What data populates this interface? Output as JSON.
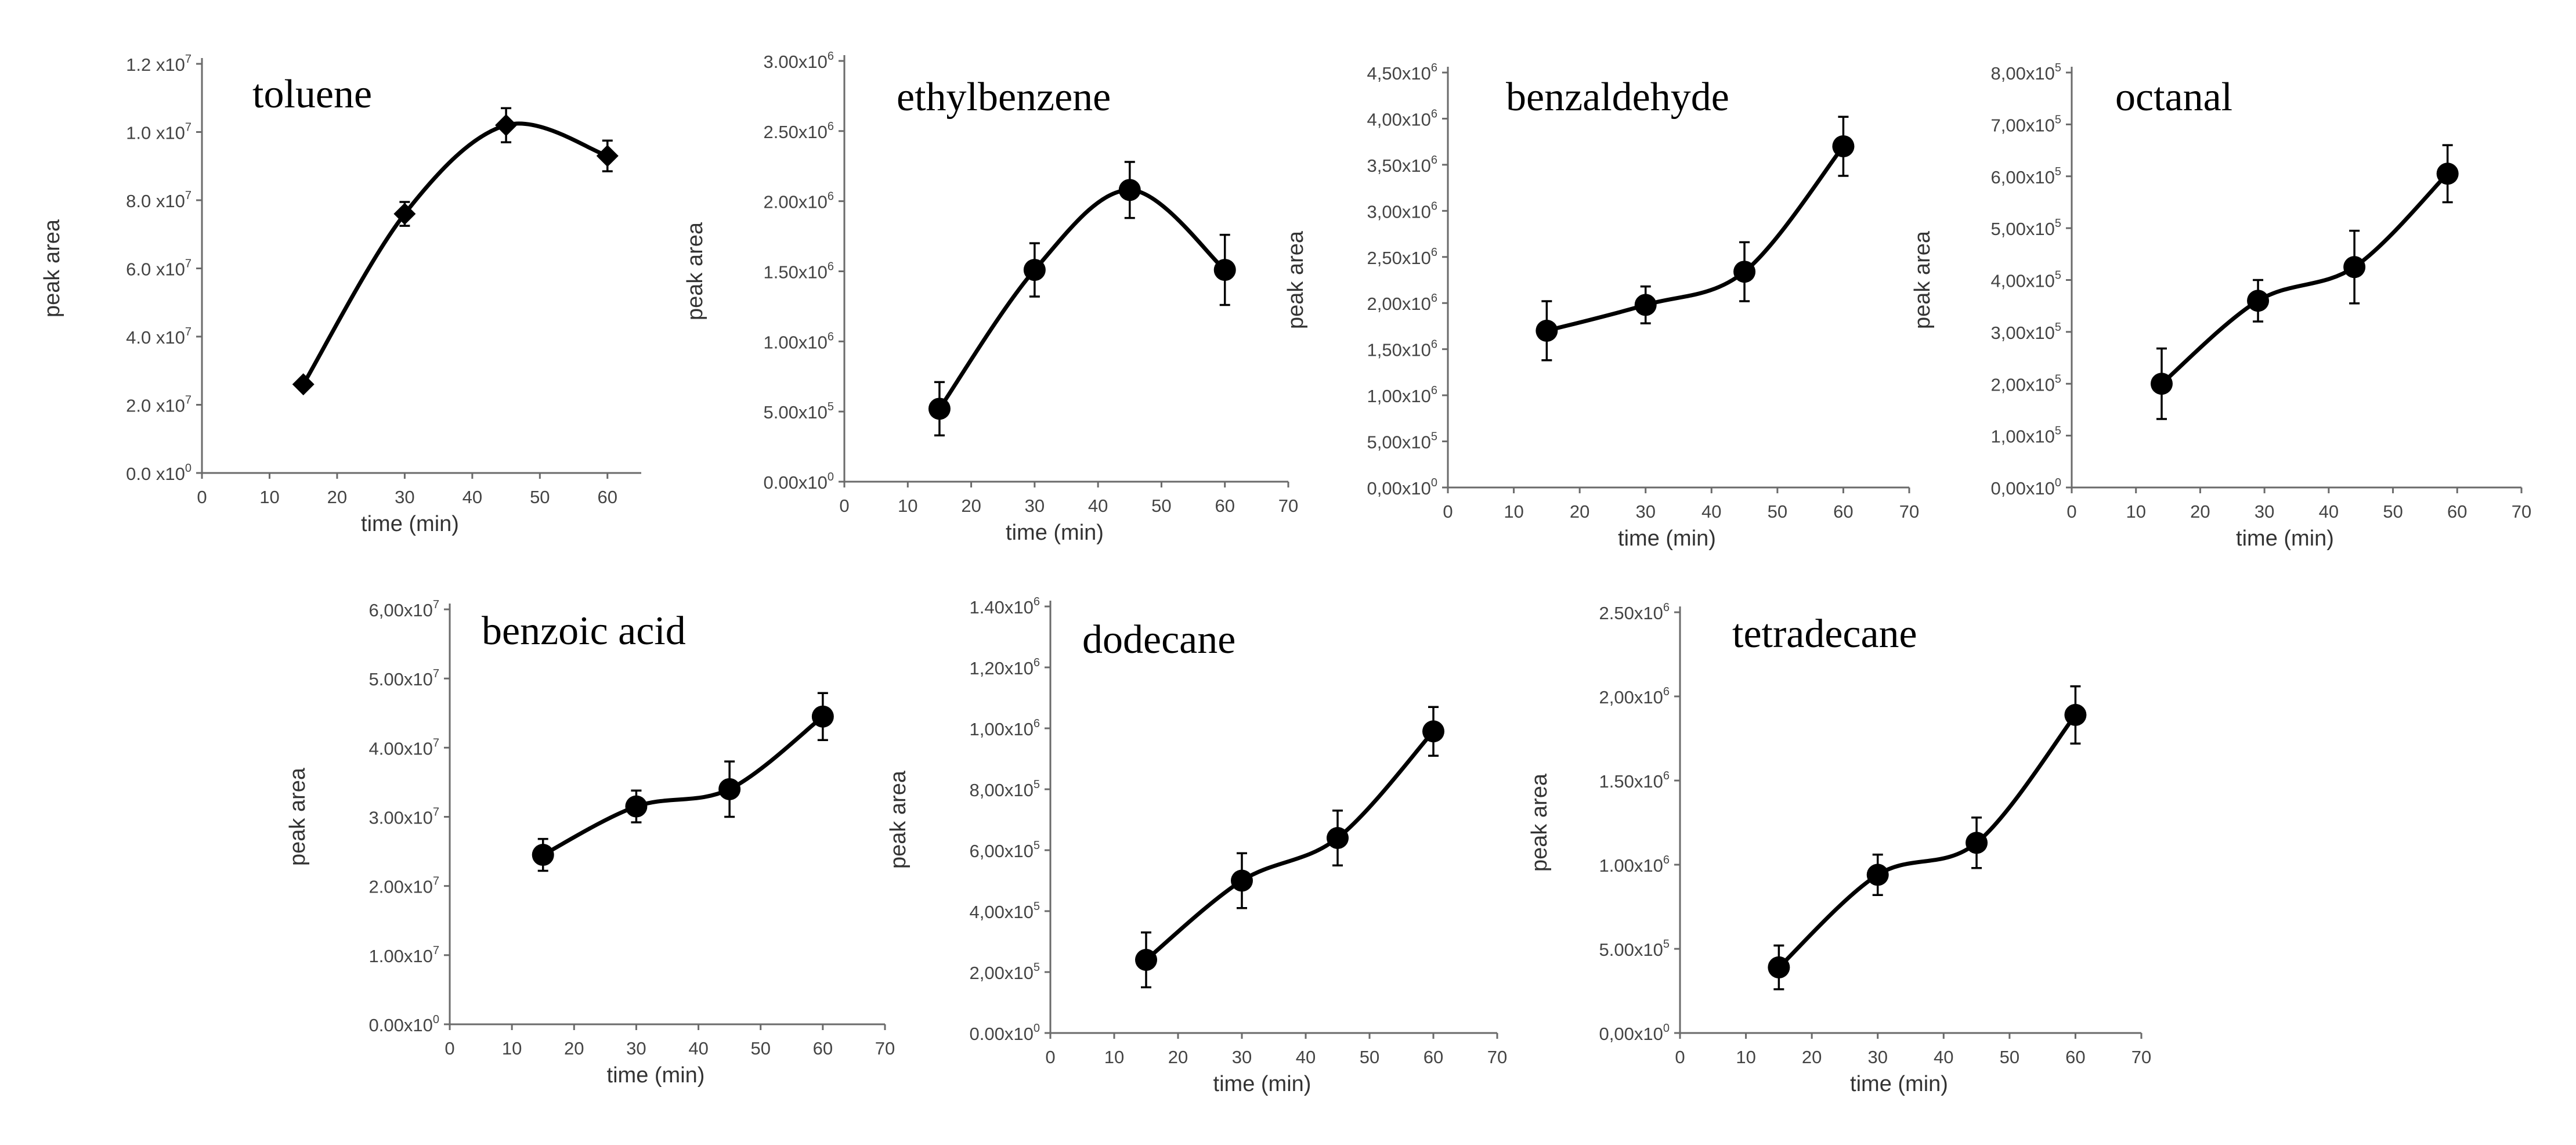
{
  "chart_data": [
    {
      "type": "scatter",
      "title": "toluene",
      "xlabel": "time (min)",
      "ylabel": "peak area",
      "marker": "diamond",
      "xlim": [
        0,
        65
      ],
      "xticks": [
        "0",
        "10",
        "20",
        "30",
        "40",
        "50",
        "60"
      ],
      "ylim": [
        0,
        120000000
      ],
      "yticks": [
        [
          "0.0 x10",
          "0"
        ],
        [
          "2.0 x10",
          "7"
        ],
        [
          "4.0 x10",
          "7"
        ],
        [
          "6.0 x10",
          "7"
        ],
        [
          "8.0 x10",
          "7"
        ],
        [
          "1.0 x10",
          "7"
        ],
        [
          "1.2 x10",
          "7"
        ]
      ],
      "x": [
        15,
        30,
        45,
        60
      ],
      "y": [
        26000000,
        76000000,
        102000000,
        93000000
      ],
      "err": [
        0,
        3500000,
        5000000,
        4500000
      ]
    },
    {
      "type": "scatter",
      "title": "ethylbenzene",
      "xlabel": "time (min)",
      "ylabel": "peak area",
      "marker": "circle",
      "xlim": [
        0,
        70
      ],
      "xticks": [
        "0",
        "10",
        "20",
        "30",
        "40",
        "50",
        "60",
        "70"
      ],
      "ylim": [
        0,
        3000000
      ],
      "yticks": [
        [
          "0.00x10",
          "0"
        ],
        [
          "5.00x10",
          "5"
        ],
        [
          "1.00x10",
          "6"
        ],
        [
          "1.50x10",
          "6"
        ],
        [
          "2.00x10",
          "6"
        ],
        [
          "2.50x10",
          "6"
        ],
        [
          "3.00x10",
          "6"
        ]
      ],
      "x": [
        15,
        30,
        45,
        60
      ],
      "y": [
        520000,
        1510000,
        2080000,
        1510000
      ],
      "err": [
        190000,
        190000,
        200000,
        250000
      ]
    },
    {
      "type": "scatter",
      "title": "benzaldehyde",
      "xlabel": "time (min)",
      "ylabel": "peak area",
      "marker": "circle",
      "xlim": [
        0,
        70
      ],
      "xticks": [
        "0",
        "10",
        "20",
        "30",
        "40",
        "50",
        "60",
        "70"
      ],
      "ylim": [
        0,
        4500000
      ],
      "yticks": [
        [
          "0,00x10",
          "0"
        ],
        [
          "5,00x10",
          "5"
        ],
        [
          "1,00x10",
          "6"
        ],
        [
          "1,50x10",
          "6"
        ],
        [
          "2,00x10",
          "6"
        ],
        [
          "2,50x10",
          "6"
        ],
        [
          "3,00x10",
          "6"
        ],
        [
          "3,50x10",
          "6"
        ],
        [
          "4,00x10",
          "6"
        ],
        [
          "4,50x10",
          "6"
        ]
      ],
      "x": [
        15,
        30,
        45,
        60
      ],
      "y": [
        1700000,
        1980000,
        2340000,
        3700000
      ],
      "err": [
        320000,
        200000,
        320000,
        320000
      ]
    },
    {
      "type": "scatter",
      "title": "octanal",
      "xlabel": "time (min)",
      "ylabel": "peak area",
      "marker": "circle",
      "xlim": [
        0,
        70
      ],
      "xticks": [
        "0",
        "10",
        "20",
        "30",
        "40",
        "50",
        "60",
        "70"
      ],
      "ylim": [
        0,
        800000
      ],
      "yticks": [
        [
          "0,00x10",
          "0"
        ],
        [
          "1,00x10",
          "5"
        ],
        [
          "2,00x10",
          "5"
        ],
        [
          "3,00x10",
          "5"
        ],
        [
          "4,00x10",
          "5"
        ],
        [
          "5,00x10",
          "5"
        ],
        [
          "6,00x10",
          "5"
        ],
        [
          "7,00x10",
          "5"
        ],
        [
          "8,00x10",
          "5"
        ]
      ],
      "x": [
        14,
        29,
        44,
        58.5
      ],
      "y": [
        200000,
        360000,
        425000,
        605000
      ],
      "err": [
        68000,
        40000,
        70000,
        55000
      ]
    },
    {
      "type": "scatter",
      "title": "benzoic acid",
      "xlabel": "time (min)",
      "ylabel": "peak area",
      "marker": "circle",
      "xlim": [
        0,
        70
      ],
      "xticks": [
        "0",
        "10",
        "20",
        "30",
        "40",
        "50",
        "60",
        "70"
      ],
      "ylim": [
        0,
        60000000
      ],
      "yticks": [
        [
          "0.00x10",
          "0"
        ],
        [
          "1.00x10",
          "7"
        ],
        [
          "2.00x10",
          "7"
        ],
        [
          "3.00x10",
          "7"
        ],
        [
          "4.00x10",
          "7"
        ],
        [
          "5.00x10",
          "7"
        ],
        [
          "6,00x10",
          "7"
        ]
      ],
      "x": [
        15,
        30,
        45,
        60
      ],
      "y": [
        24500000,
        31500000,
        34000000,
        44500000
      ],
      "err": [
        2300000,
        2300000,
        4000000,
        3400000
      ]
    },
    {
      "type": "scatter",
      "title": "dodecane",
      "xlabel": "time (min)",
      "ylabel": "peak area",
      "marker": "circle",
      "xlim": [
        0,
        70
      ],
      "xticks": [
        "0",
        "10",
        "20",
        "30",
        "40",
        "50",
        "60",
        "70"
      ],
      "ylim": [
        0,
        1400000
      ],
      "yticks": [
        [
          "0.00x10",
          "0"
        ],
        [
          "2,00x10",
          "5"
        ],
        [
          "4,00x10",
          "5"
        ],
        [
          "6,00x10",
          "5"
        ],
        [
          "8,00x10",
          "5"
        ],
        [
          "1,00x10",
          "6"
        ],
        [
          "1,20x10",
          "6"
        ],
        [
          "1.40x10",
          "6"
        ]
      ],
      "x": [
        15,
        30,
        45,
        60
      ],
      "y": [
        240000,
        500000,
        640000,
        990000
      ],
      "err": [
        90000,
        90000,
        90000,
        80000
      ]
    },
    {
      "type": "scatter",
      "title": "tetradecane",
      "xlabel": "time (min)",
      "ylabel": "peak area",
      "marker": "circle",
      "xlim": [
        0,
        70
      ],
      "xticks": [
        "0",
        "10",
        "20",
        "30",
        "40",
        "50",
        "60",
        "70"
      ],
      "ylim": [
        0,
        2500000
      ],
      "yticks": [
        [
          "0,00x10",
          "0"
        ],
        [
          "5.00x10",
          "5"
        ],
        [
          "1.00x10",
          "6"
        ],
        [
          "1.50x10",
          "6"
        ],
        [
          "2,00x10",
          "6"
        ],
        [
          "2.50x10",
          "6"
        ]
      ],
      "x": [
        15,
        30,
        45,
        60
      ],
      "y": [
        390000,
        940000,
        1130000,
        1890000
      ],
      "err": [
        130000,
        120000,
        150000,
        170000
      ]
    }
  ]
}
